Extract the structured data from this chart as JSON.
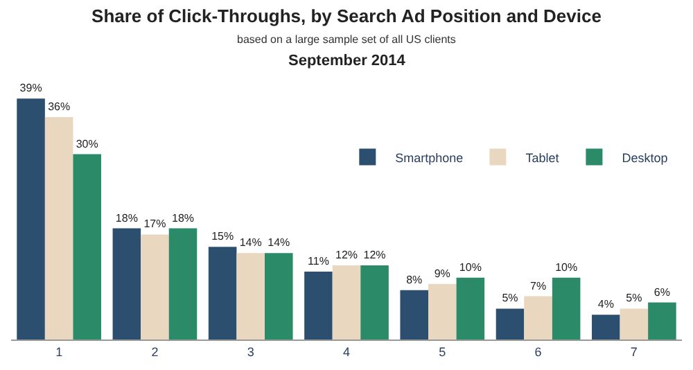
{
  "chart_data": {
    "type": "bar",
    "title": "Share of Click-Throughs, by Search Ad Position and Device",
    "subtitle": "based on a large sample set of all US clients",
    "annotations": [
      "September 2014"
    ],
    "categories": [
      "1",
      "2",
      "3",
      "4",
      "5",
      "6",
      "7"
    ],
    "series": [
      {
        "name": "Smartphone",
        "color": "#2d4f6f",
        "values": [
          39,
          18,
          15,
          11,
          8,
          5,
          4
        ],
        "value_labels": [
          "39%",
          "18%",
          "15%",
          "11%",
          "8%",
          "5%",
          "4%"
        ]
      },
      {
        "name": "Tablet",
        "color": "#ead7bf",
        "values": [
          36,
          17,
          14,
          12,
          9,
          7,
          5
        ],
        "value_labels": [
          "36%",
          "17%",
          "14%",
          "12%",
          "9%",
          "7%",
          "5%"
        ]
      },
      {
        "name": "Desktop",
        "color": "#2b8a68",
        "values": [
          30,
          18,
          14,
          12,
          10,
          10,
          6
        ],
        "value_labels": [
          "30%",
          "18%",
          "14%",
          "12%",
          "10%",
          "10%",
          "6%"
        ]
      }
    ],
    "legend": "right"
  }
}
